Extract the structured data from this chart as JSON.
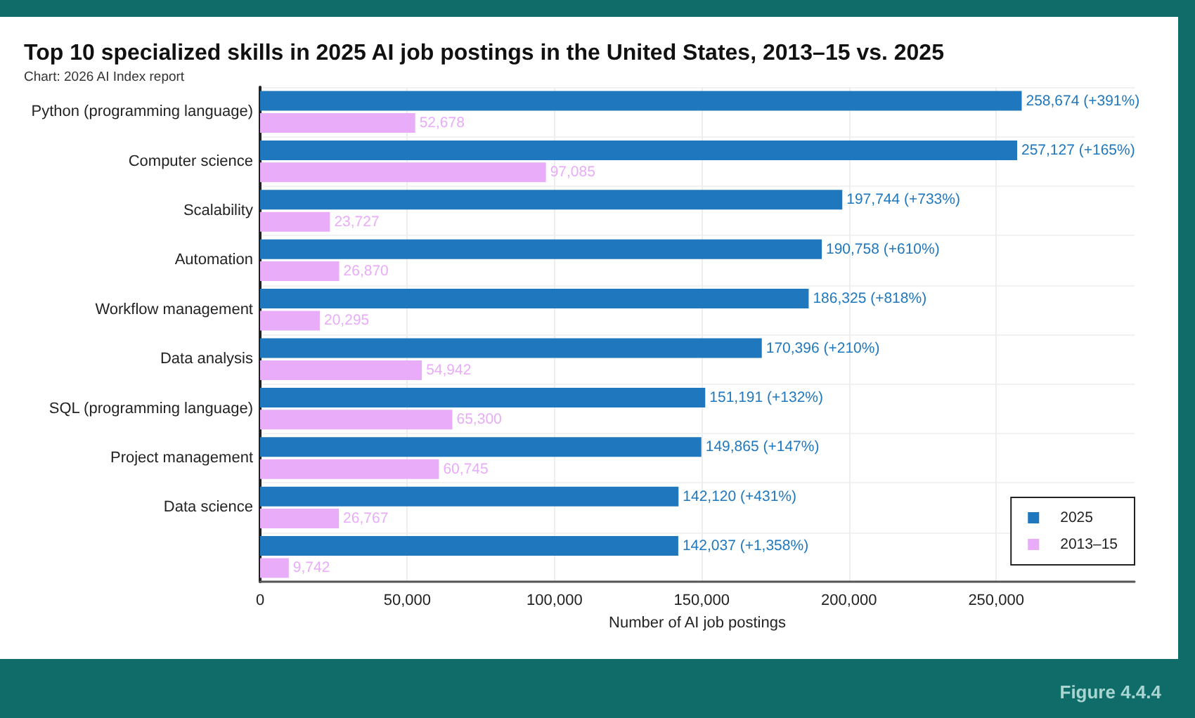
{
  "chart_data": {
    "type": "bar",
    "orientation": "horizontal",
    "title": "Top 10 specialized skills in 2025 AI job postings in the United States, 2013–15 vs. 2025",
    "subtitle": "Chart: 2026 AI Index report",
    "xlabel": "Number of AI job postings",
    "categories": [
      "Python (programming language)",
      "Computer science",
      "Scalability",
      "Automation",
      "Workflow management",
      "Data analysis",
      "SQL (programming language)",
      "Project management",
      "Data science",
      null
    ],
    "series": [
      {
        "name": "2025",
        "color": "#1f77bd",
        "values": [
          258674,
          257127,
          197744,
          190758,
          186325,
          170396,
          151191,
          149865,
          142120,
          142037
        ],
        "value_labels": [
          "258,674 (+391%)",
          "257,127 (+165%)",
          "197,744 (+733%)",
          "190,758 (+610%)",
          "186,325 (+818%)",
          "170,396 (+210%)",
          "151,191 (+132%)",
          "149,865 (+147%)",
          "142,120 (+431%)",
          "142,037 (+1,358%)"
        ]
      },
      {
        "name": "2013–15",
        "color": "#e9acf9",
        "values": [
          52678,
          97085,
          23727,
          26870,
          20295,
          54942,
          65300,
          60745,
          26767,
          9742
        ],
        "value_labels": [
          "52,678",
          "97,085",
          "23,727",
          "26,870",
          "20,295",
          "54,942",
          "65,300",
          "60,745",
          "26,767",
          "9,742"
        ]
      }
    ],
    "xlim": [
      0,
      297000
    ],
    "xticks": [
      0,
      {
        "value": 50000,
        "label": "50,000"
      },
      {
        "value": 100000,
        "label": "100,000"
      },
      {
        "value": 150000,
        "label": "150,000"
      },
      {
        "value": 200000,
        "label": "200,000"
      },
      {
        "value": 250000,
        "label": "250,000"
      }
    ],
    "grid": true,
    "legend": "bottom right",
    "annotations": [
      "Figure 4.4.4"
    ]
  }
}
